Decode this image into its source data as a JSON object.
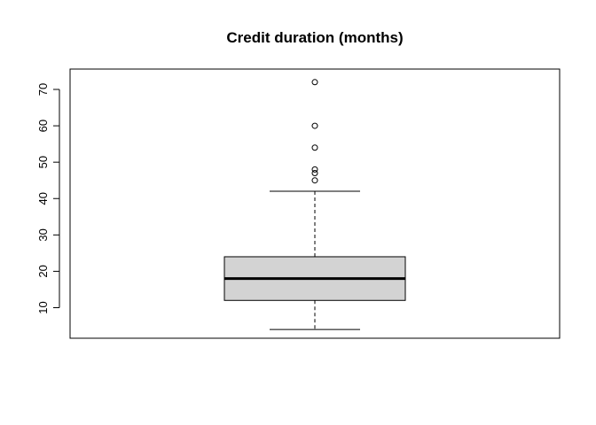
{
  "chart_data": {
    "type": "boxplot",
    "title": "Credit duration (months)",
    "xlabel": "",
    "ylabel": "",
    "ylim": [
      1.6,
      75.6
    ],
    "yticks": [
      10,
      20,
      30,
      40,
      50,
      60,
      70
    ],
    "box": {
      "fill": "#d3d3d3",
      "whisker_low": 4,
      "q1": 12,
      "median": 18,
      "q3": 24,
      "whisker_high": 42
    },
    "outliers": [
      45,
      47,
      48,
      54,
      60,
      72
    ],
    "grid": false,
    "legend": "none"
  }
}
